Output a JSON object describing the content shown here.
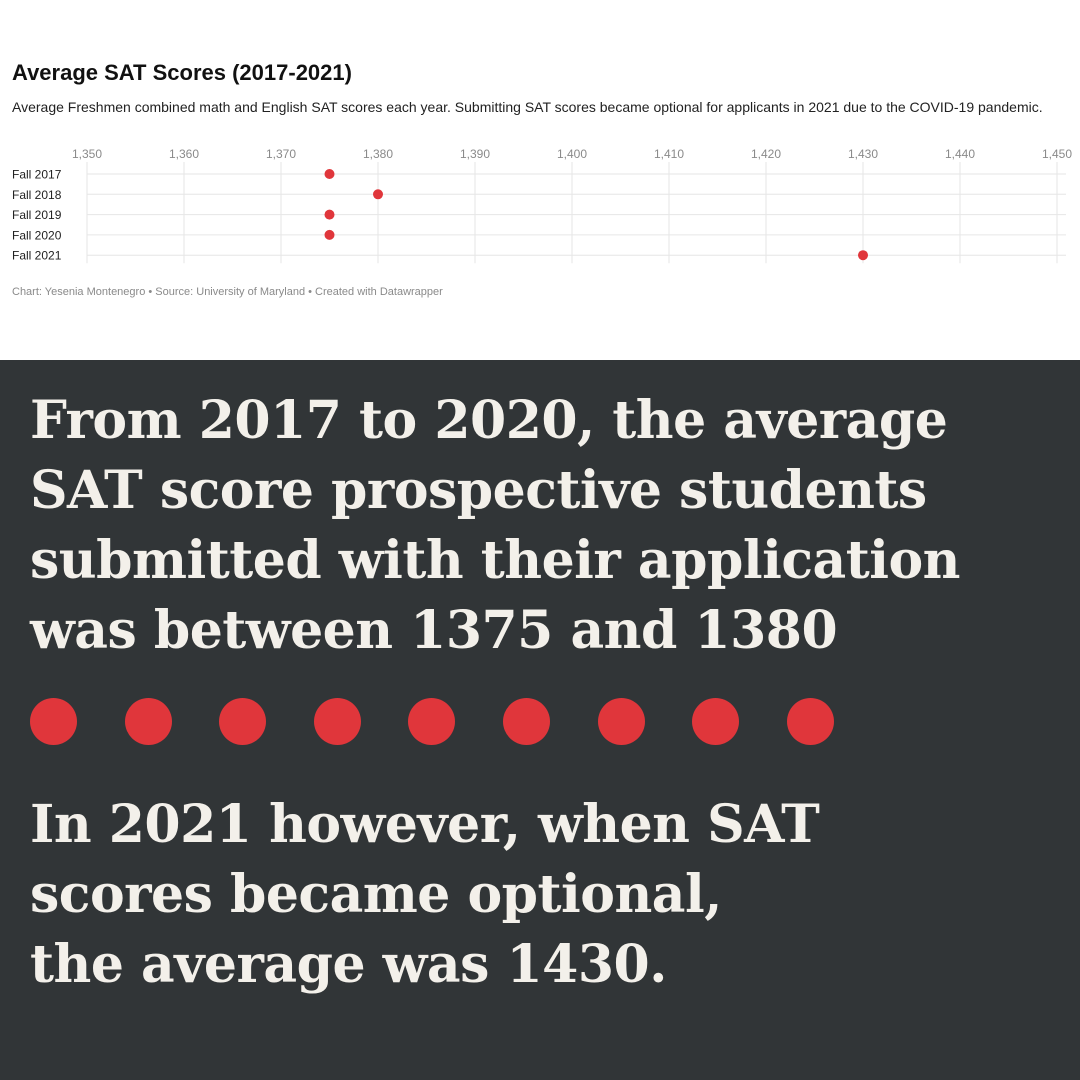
{
  "chart_data": {
    "type": "scatter",
    "title": "Average SAT Scores (2017-2021)",
    "subtitle": "Average Freshmen combined math and English SAT scores each year. Submitting SAT scores became optional for applicants in 2021 due to the COVID-19 pandemic.",
    "categories": [
      "Fall 2017",
      "Fall 2018",
      "Fall 2019",
      "Fall 2020",
      "Fall 2021"
    ],
    "values": [
      1375,
      1380,
      1375,
      1375,
      1430
    ],
    "xlim": [
      1350,
      1450
    ],
    "xticks": [
      1350,
      1360,
      1370,
      1380,
      1390,
      1400,
      1410,
      1420,
      1430,
      1440,
      1450
    ],
    "tick_labels": [
      "1,350",
      "1,360",
      "1,370",
      "1,380",
      "1,390",
      "1,400",
      "1,410",
      "1,420",
      "1,430",
      "1,440",
      "1,450"
    ],
    "grid": true,
    "point_color": "#e0363b",
    "footer": "Chart: Yesenia Montenegro • Source: University of Maryland • Created with Datawrapper"
  },
  "text_panel": {
    "background": "#313537",
    "text_color": "#f3f0ea",
    "paragraph1": [
      "From 2017 to 2020, the average",
      "SAT score prospective students",
      "submitted with their application",
      "was between 1375 and 1380"
    ],
    "dot_count": 9,
    "dot_color": "#e0363b",
    "paragraph2": [
      "In 2021 however, when SAT",
      "scores became optional,",
      "the average was 1430."
    ]
  }
}
